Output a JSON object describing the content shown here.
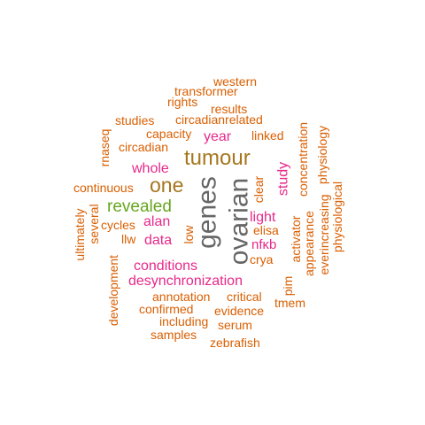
{
  "palette": {
    "orange": "#d95f02",
    "magenta": "#e7298a",
    "green": "#66a61e",
    "olive": "#a6761d",
    "gray": "#666666"
  },
  "words": [
    {
      "text": "genes",
      "color": "gray"
    },
    {
      "text": "ovarian",
      "color": "gray"
    },
    {
      "text": "tumour",
      "color": "olive"
    },
    {
      "text": "one",
      "color": "olive"
    },
    {
      "text": "revealed",
      "color": "green"
    },
    {
      "text": "desynchronization",
      "color": "magenta"
    },
    {
      "text": "conditions",
      "color": "magenta"
    },
    {
      "text": "whole",
      "color": "magenta"
    },
    {
      "text": "year",
      "color": "magenta"
    },
    {
      "text": "alan",
      "color": "magenta"
    },
    {
      "text": "data",
      "color": "magenta"
    },
    {
      "text": "light",
      "color": "magenta"
    },
    {
      "text": "nfκb",
      "color": "magenta"
    },
    {
      "text": "study",
      "color": "magenta"
    },
    {
      "text": "western",
      "color": "orange"
    },
    {
      "text": "transformer",
      "color": "orange"
    },
    {
      "text": "rights",
      "color": "orange"
    },
    {
      "text": "results",
      "color": "orange"
    },
    {
      "text": "studies",
      "color": "orange"
    },
    {
      "text": "circadianrelated",
      "color": "orange"
    },
    {
      "text": "capacity",
      "color": "orange"
    },
    {
      "text": "circadian",
      "color": "orange"
    },
    {
      "text": "linked",
      "color": "orange"
    },
    {
      "text": "rnaseq",
      "color": "orange"
    },
    {
      "text": "continuous",
      "color": "orange"
    },
    {
      "text": "clear",
      "color": "orange"
    },
    {
      "text": "elisa",
      "color": "orange"
    },
    {
      "text": "cycles",
      "color": "orange"
    },
    {
      "text": "llw",
      "color": "orange"
    },
    {
      "text": "low",
      "color": "orange"
    },
    {
      "text": "crya",
      "color": "orange"
    },
    {
      "text": "several",
      "color": "orange"
    },
    {
      "text": "ultimately",
      "color": "orange"
    },
    {
      "text": "development",
      "color": "orange"
    },
    {
      "text": "annotation",
      "color": "orange"
    },
    {
      "text": "critical",
      "color": "orange"
    },
    {
      "text": "confirmed",
      "color": "orange"
    },
    {
      "text": "evidence",
      "color": "orange"
    },
    {
      "text": "including",
      "color": "orange"
    },
    {
      "text": "serum",
      "color": "orange"
    },
    {
      "text": "samples",
      "color": "orange"
    },
    {
      "text": "zebrafish",
      "color": "orange"
    },
    {
      "text": "pim",
      "color": "orange"
    },
    {
      "text": "tmem",
      "color": "orange"
    },
    {
      "text": "activator",
      "color": "orange"
    },
    {
      "text": "appearance",
      "color": "orange"
    },
    {
      "text": "concentration",
      "color": "orange"
    },
    {
      "text": "physiology",
      "color": "orange"
    },
    {
      "text": "everincreasing",
      "color": "orange"
    },
    {
      "text": "physiological",
      "color": "orange"
    }
  ]
}
